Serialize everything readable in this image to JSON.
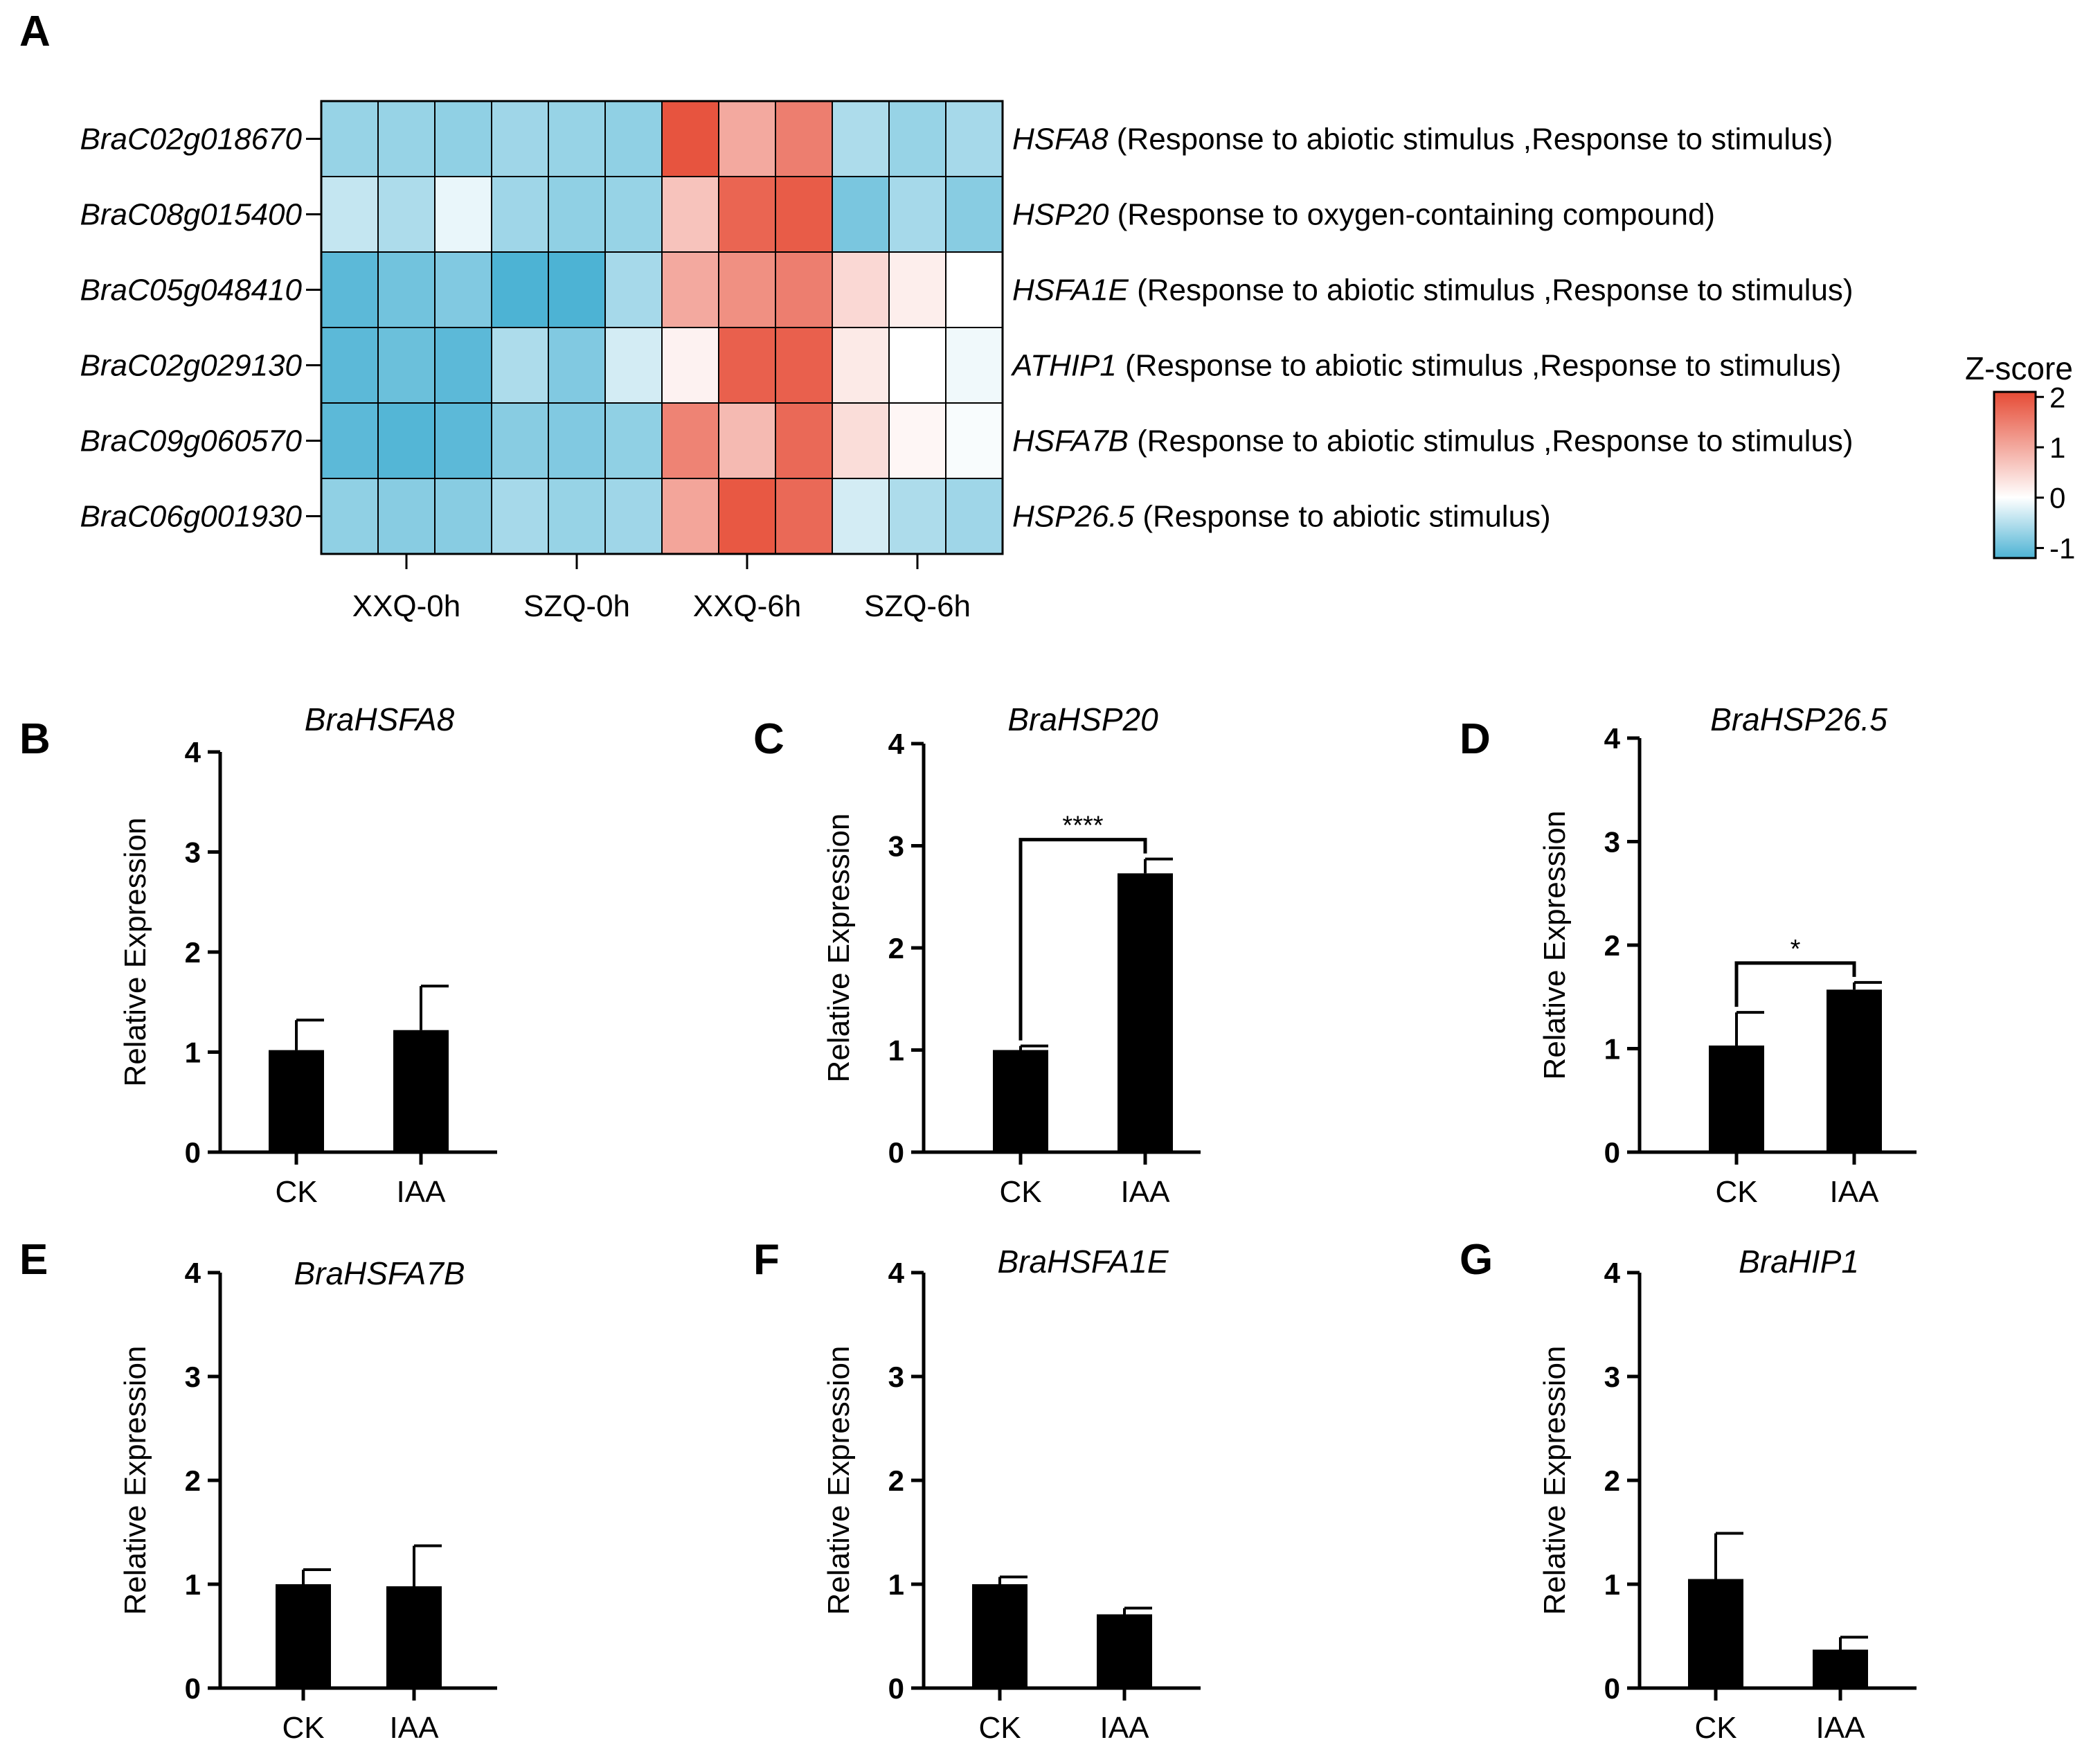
{
  "panel_labels": [
    "A",
    "B",
    "C",
    "D",
    "E",
    "F",
    "G"
  ],
  "heatmap": {
    "row_genes": [
      "BraC02g018670",
      "BraC08g015400",
      "BraC05g048410",
      "BraC02g029130",
      "BraC09g060570",
      "BraC06g001930"
    ],
    "row_names": [
      "HSFA8",
      "HSP20",
      "HSFA1E",
      "ATHIP1",
      "HSFA7B",
      "HSP26.5"
    ],
    "row_terms": [
      "(Response to abiotic stimulus ,Response to stimulus)",
      "(Response to oxygen-containing compound)",
      "(Response to abiotic stimulus ,Response to stimulus)",
      "(Response to abiotic stimulus ,Response to stimulus)",
      "(Response to abiotic stimulus ,Response to stimulus)",
      "(Response to abiotic stimulus)"
    ],
    "groups": [
      "XXQ-0h",
      "SZQ-0h",
      "XXQ-6h",
      "SZQ-6h"
    ],
    "colorbar_title": "Z-score",
    "colorbar_ticks": [
      "2",
      "1",
      "0",
      "-1"
    ],
    "colors": {
      "low": "#4db3d4",
      "mid": "#ffffff",
      "high": "#e64b35"
    }
  },
  "chart_data": [
    {
      "type": "heatmap",
      "rows": [
        "BraC02g018670",
        "BraC08g015400",
        "BraC05g048410",
        "BraC02g029130",
        "BraC09g060570",
        "BraC06g001930"
      ],
      "columns": [
        "XXQ-0h",
        "XXQ-0h",
        "XXQ-0h",
        "SZQ-0h",
        "SZQ-0h",
        "SZQ-0h",
        "XXQ-6h",
        "XXQ-6h",
        "XXQ-6h",
        "SZQ-6h",
        "SZQ-6h",
        "SZQ-6h"
      ],
      "values": [
        [
          -0.7,
          -0.7,
          -0.75,
          -0.65,
          -0.7,
          -0.75,
          2.0,
          1.0,
          1.5,
          -0.55,
          -0.7,
          -0.6
        ],
        [
          -0.4,
          -0.55,
          -0.15,
          -0.65,
          -0.75,
          -0.7,
          0.7,
          1.8,
          1.9,
          -0.9,
          -0.6,
          -0.8
        ],
        [
          -1.1,
          -0.95,
          -0.85,
          -1.2,
          -1.35,
          -0.6,
          1.0,
          1.3,
          1.5,
          0.45,
          0.2,
          0.0
        ],
        [
          -1.1,
          -1.0,
          -1.1,
          -0.55,
          -0.85,
          -0.3,
          0.15,
          1.85,
          1.85,
          0.25,
          0.0,
          -0.1
        ],
        [
          -1.1,
          -1.15,
          -1.1,
          -0.8,
          -0.85,
          -0.75,
          1.45,
          0.8,
          1.75,
          0.4,
          0.1,
          -0.05
        ],
        [
          -0.75,
          -0.8,
          -0.8,
          -0.6,
          -0.7,
          -0.65,
          1.05,
          1.95,
          1.75,
          -0.3,
          -0.55,
          -0.65
        ]
      ],
      "colorbar_range": [
        -1.2,
        2.1
      ]
    },
    {
      "panel": "B",
      "type": "bar",
      "title": "BraHSFA8",
      "ylabel": "Relative Expression",
      "categories": [
        "CK",
        "IAA"
      ],
      "values": [
        1.02,
        1.22
      ],
      "errors": [
        0.3,
        0.44
      ],
      "ylim": [
        0,
        4
      ],
      "yticks": [
        "0",
        "1",
        "2",
        "3",
        "4"
      ],
      "significance": null
    },
    {
      "panel": "C",
      "type": "bar",
      "title": "BraHSP20",
      "ylabel": "Relative Expression",
      "categories": [
        "CK",
        "IAA"
      ],
      "values": [
        1.0,
        2.73
      ],
      "errors": [
        0.04,
        0.14
      ],
      "ylim": [
        0,
        4
      ],
      "yticks": [
        "0",
        "1",
        "2",
        "3",
        "4"
      ],
      "significance": "****"
    },
    {
      "panel": "D",
      "type": "bar",
      "title": "BraHSP26.5",
      "ylabel": "Relative Expression",
      "categories": [
        "CK",
        "IAA"
      ],
      "values": [
        1.03,
        1.57
      ],
      "errors": [
        0.32,
        0.07
      ],
      "ylim": [
        0,
        4
      ],
      "yticks": [
        "0",
        "1",
        "2",
        "3",
        "4"
      ],
      "significance": "*"
    },
    {
      "panel": "E",
      "type": "bar",
      "title": "BraHSFA7B",
      "ylabel": "Relative Expression",
      "categories": [
        "CK",
        "IAA"
      ],
      "values": [
        1.0,
        0.98
      ],
      "errors": [
        0.14,
        0.39
      ],
      "ylim": [
        0,
        4
      ],
      "yticks": [
        "0",
        "1",
        "2",
        "3",
        "4"
      ],
      "significance": null
    },
    {
      "panel": "F",
      "type": "bar",
      "title": "BraHSFA1E",
      "ylabel": "Relative Expression",
      "categories": [
        "CK",
        "IAA"
      ],
      "values": [
        1.0,
        0.71
      ],
      "errors": [
        0.07,
        0.06
      ],
      "ylim": [
        0,
        4
      ],
      "yticks": [
        "0",
        "1",
        "2",
        "3",
        "4"
      ],
      "significance": null
    },
    {
      "panel": "G",
      "type": "bar",
      "title": "BraHIP1",
      "ylabel": "Relative Expression",
      "categories": [
        "CK",
        "IAA"
      ],
      "values": [
        1.05,
        0.37
      ],
      "errors": [
        0.44,
        0.12
      ],
      "ylim": [
        0,
        4
      ],
      "yticks": [
        "0",
        "1",
        "2",
        "3",
        "4"
      ],
      "significance": null
    }
  ]
}
